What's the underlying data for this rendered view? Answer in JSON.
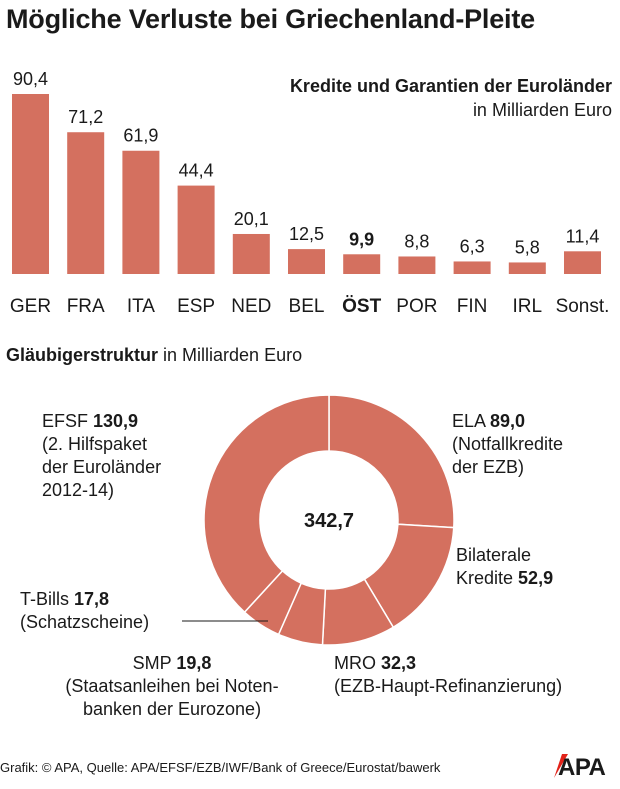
{
  "title": "Mögliche Verluste bei Griechenland-Pleite",
  "bar_chart": {
    "title": "Kredite und Garantien der Euroländer",
    "subtitle": "in Milliarden Euro"
  },
  "donut_chart": {
    "title_bold": "Gläubigerstruktur",
    "title_rest": " in Milliarden Euro",
    "total_label": "342,7",
    "labels": {
      "efsf": {
        "name": "EFSF ",
        "value": "130,9",
        "desc1": "(2. Hilfspaket",
        "desc2": "der Euroländer",
        "desc3": "2012-14)"
      },
      "ela": {
        "name": "ELA ",
        "value": "89,0",
        "desc1": "(Notfallkredite",
        "desc2": "der EZB)"
      },
      "bilateral": {
        "name1": "Bilaterale",
        "name2": "Kredite ",
        "value": "52,9"
      },
      "tbills": {
        "name": "T-Bills ",
        "value": "17,8",
        "desc1": "(Schatzscheine)"
      },
      "smp": {
        "name": "SMP ",
        "value": "19,8",
        "desc1": "(Staatsanleihen bei Noten-",
        "desc2": "banken der Eurozone)"
      },
      "mro": {
        "name": "MRO ",
        "value": "32,3",
        "desc1": "(EZB-Haupt-Refinanzierung)"
      }
    }
  },
  "footer": "Grafik: © APA, Quelle: APA/EFSF/EZB/IWF/Bank of Greece/Eurostat/bawerk",
  "logo_text": "APA",
  "colors": {
    "bar": "#d4705f",
    "text": "#1a1a1a",
    "logo_red": "#e2231a"
  },
  "chart_data": [
    {
      "type": "bar",
      "title": "Kredite und Garantien der Euroländer",
      "subtitle": "in Milliarden Euro",
      "categories": [
        "GER",
        "FRA",
        "ITA",
        "ESP",
        "NED",
        "BEL",
        "ÖST",
        "POR",
        "FIN",
        "IRL",
        "Sonst."
      ],
      "values": [
        90.4,
        71.2,
        61.9,
        44.4,
        20.1,
        12.5,
        9.9,
        8.8,
        6.3,
        5.8,
        11.4
      ],
      "value_labels": [
        "90,4",
        "71,2",
        "61,9",
        "44,4",
        "20,1",
        "12,5",
        "9,9",
        "8,8",
        "6,3",
        "5,8",
        "11,4"
      ],
      "highlighted": "ÖST",
      "ylim": [
        0,
        90.4
      ],
      "grid": false
    },
    {
      "type": "pie",
      "title": "Gläubigerstruktur",
      "subtitle": "in Milliarden Euro",
      "donut": true,
      "total": 342.7,
      "categories": [
        "ELA",
        "Bilaterale Kredite",
        "MRO",
        "SMP",
        "T-Bills",
        "EFSF"
      ],
      "values": [
        89.0,
        52.9,
        32.3,
        19.8,
        17.8,
        130.9
      ]
    }
  ]
}
